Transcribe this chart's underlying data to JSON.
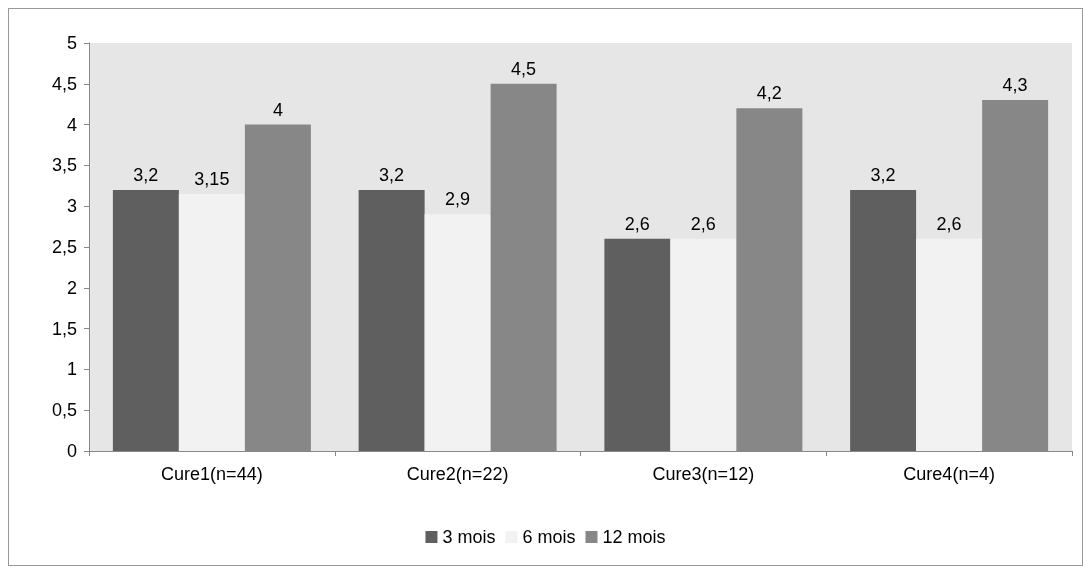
{
  "chart_data": {
    "type": "bar",
    "categories": [
      "Cure1(n=44)",
      "Cure2(n=22)",
      "Cure3(n=12)",
      "Cure4(n=4)"
    ],
    "series": [
      {
        "name": "3 mois",
        "color": "#5f5f5f",
        "values": [
          3.2,
          3.2,
          2.6,
          3.2
        ],
        "value_labels": [
          "3,2",
          "3,2",
          "2,6",
          "3,2"
        ]
      },
      {
        "name": "6 mois",
        "color": "#f2f2f2",
        "values": [
          3.15,
          2.9,
          2.6,
          2.6
        ],
        "value_labels": [
          "3,15",
          "2,9",
          "2,6",
          "2,6"
        ]
      },
      {
        "name": "12 mois",
        "color": "#878787",
        "values": [
          4,
          4.5,
          4.2,
          4.3
        ],
        "value_labels": [
          "4",
          "4,5",
          "4,2",
          "4,3"
        ]
      }
    ],
    "ylim": [
      0,
      5
    ],
    "yticks": [
      0,
      {
        "value": 0.5,
        "label": "0,5"
      },
      1,
      {
        "value": 1.5,
        "label": "1,5"
      },
      2,
      {
        "value": 2.5,
        "label": "2,5"
      },
      3,
      {
        "value": 3.5,
        "label": "3,5"
      },
      4,
      {
        "value": 4.5,
        "label": "4,5"
      },
      5
    ],
    "grid": false,
    "legend": "bottom"
  }
}
